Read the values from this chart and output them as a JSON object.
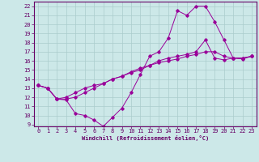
{
  "xlabel": "Windchill (Refroidissement éolien,°C)",
  "ylabel": "",
  "background_color": "#cce8e8",
  "line_color": "#990099",
  "grid_color": "#aacccc",
  "xlim": [
    -0.5,
    23.5
  ],
  "ylim": [
    8.8,
    22.5
  ],
  "yticks": [
    9,
    10,
    11,
    12,
    13,
    14,
    15,
    16,
    17,
    18,
    19,
    20,
    21,
    22
  ],
  "xticks": [
    0,
    1,
    2,
    3,
    4,
    5,
    6,
    7,
    8,
    9,
    10,
    11,
    12,
    13,
    14,
    15,
    16,
    17,
    18,
    19,
    20,
    21,
    22,
    23
  ],
  "lines": [
    {
      "x": [
        0,
        1,
        2,
        3,
        4,
        5,
        6,
        7,
        8,
        9,
        10,
        11,
        12,
        13,
        14,
        15,
        16,
        17,
        18,
        19,
        20,
        21,
        22,
        23
      ],
      "y": [
        13.3,
        13.0,
        11.8,
        11.7,
        10.2,
        10.0,
        9.5,
        8.8,
        9.8,
        10.8,
        12.5,
        14.5,
        16.5,
        17.0,
        18.5,
        21.5,
        21.0,
        22.0,
        22.0,
        20.3,
        18.3,
        16.3,
        16.2,
        16.5
      ]
    },
    {
      "x": [
        0,
        1,
        2,
        3,
        4,
        5,
        6,
        7,
        8,
        9,
        10,
        11,
        12,
        13,
        14,
        15,
        16,
        17,
        18,
        19,
        20,
        21,
        22,
        23
      ],
      "y": [
        13.3,
        13.0,
        11.8,
        12.0,
        12.5,
        13.0,
        13.3,
        13.5,
        14.0,
        14.3,
        14.7,
        15.0,
        15.5,
        16.0,
        16.3,
        16.5,
        16.7,
        17.0,
        18.3,
        16.3,
        16.1,
        16.3,
        16.3,
        16.5
      ]
    },
    {
      "x": [
        0,
        1,
        2,
        3,
        4,
        5,
        6,
        7,
        8,
        9,
        10,
        11,
        12,
        13,
        14,
        15,
        16,
        17,
        18,
        19,
        20,
        21,
        22,
        23
      ],
      "y": [
        13.3,
        13.0,
        11.8,
        11.8,
        12.0,
        12.5,
        13.0,
        13.5,
        14.0,
        14.3,
        14.8,
        15.2,
        15.5,
        15.8,
        16.0,
        16.2,
        16.5,
        16.7,
        17.0,
        17.0,
        16.5,
        16.3,
        16.3,
        16.5
      ]
    }
  ]
}
